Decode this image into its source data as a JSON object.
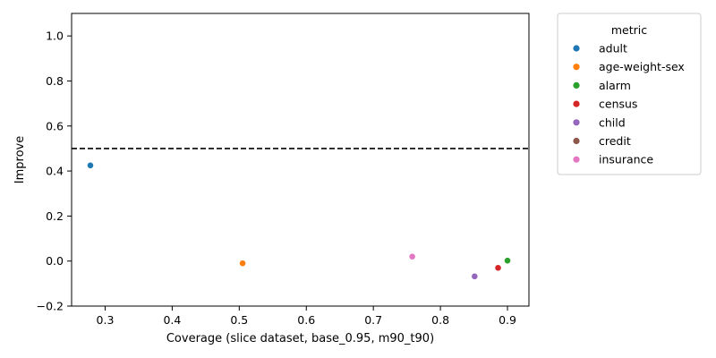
{
  "chart_data": {
    "type": "scatter",
    "title": "",
    "xlabel": "Coverage (slice dataset, base_0.95, m90_t90)",
    "ylabel": "Improve",
    "xlim": [
      0.25,
      0.932
    ],
    "ylim": [
      -0.2,
      1.1
    ],
    "xticks": [
      0.3,
      0.4,
      0.5,
      0.6,
      0.7,
      0.8,
      0.9
    ],
    "xtick_labels": [
      "0.3",
      "0.4",
      "0.5",
      "0.6",
      "0.7",
      "0.8",
      "0.9"
    ],
    "yticks": [
      -0.2,
      0.0,
      0.2,
      0.4,
      0.6,
      0.8,
      1.0
    ],
    "ytick_labels": [
      "−0.2",
      "0.0",
      "0.2",
      "0.4",
      "0.6",
      "0.8",
      "1.0"
    ],
    "grid": false,
    "reference_line": {
      "y": 0.5,
      "style": "dashed",
      "color": "#000000"
    },
    "legend": {
      "title": "metric",
      "placement": "outside-right-top"
    },
    "series": [
      {
        "name": "adult",
        "color": "#1f77b4",
        "points": [
          {
            "x": 0.278,
            "y": 0.425
          }
        ]
      },
      {
        "name": "age-weight-sex",
        "color": "#ff7f0e",
        "points": [
          {
            "x": 0.505,
            "y": -0.01
          }
        ]
      },
      {
        "name": "alarm",
        "color": "#2ca02c",
        "points": [
          {
            "x": 0.9,
            "y": 0.002
          }
        ]
      },
      {
        "name": "census",
        "color": "#d62728",
        "points": [
          {
            "x": 0.886,
            "y": -0.03
          }
        ]
      },
      {
        "name": "child",
        "color": "#9467bd",
        "points": [
          {
            "x": 0.851,
            "y": -0.068
          }
        ]
      },
      {
        "name": "credit",
        "color": "#8c564b",
        "points": []
      },
      {
        "name": "insurance",
        "color": "#e377c2",
        "points": [
          {
            "x": 0.758,
            "y": 0.02
          }
        ]
      }
    ]
  }
}
